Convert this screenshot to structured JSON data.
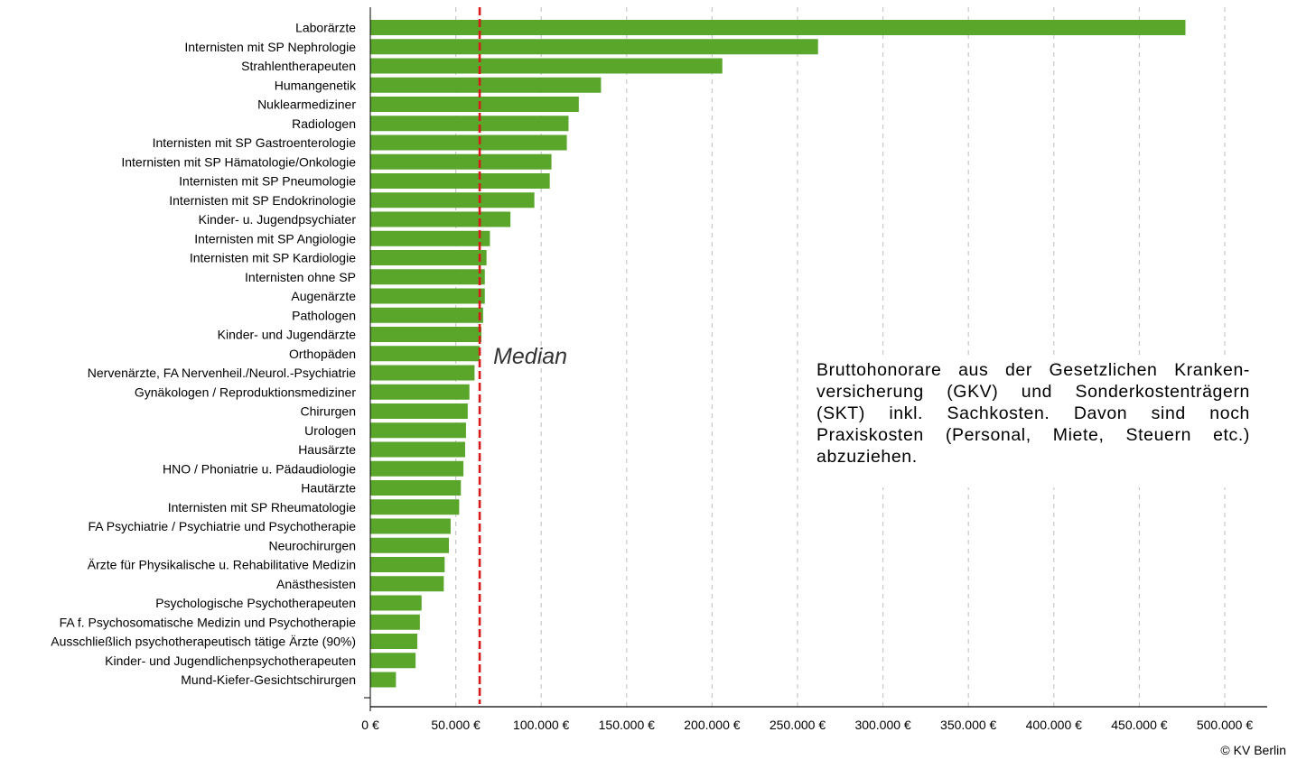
{
  "chart_data": {
    "type": "bar",
    "orientation": "horizontal",
    "categories": [
      "Laborärzte",
      "Internisten mit SP Nephrologie",
      "Strahlentherapeuten",
      "Humangenetik",
      "Nuklearmediziner",
      "Radiologen",
      "Internisten mit SP Gastroenterologie",
      "Internisten mit SP Hämatologie/Onkologie",
      "Internisten mit SP Pneumologie",
      "Internisten mit SP Endokrinologie",
      "Kinder- u. Jugendpsychiater",
      "Internisten mit SP Angiologie",
      "Internisten mit SP Kardiologie",
      "Internisten ohne SP",
      "Augenärzte",
      "Pathologen",
      "Kinder- und Jugendärzte",
      "Orthopäden",
      "Nervenärzte, FA Nervenheil./Neurol.-Psychiatrie",
      "Gynäkologen / Reproduktionsmediziner",
      "Chirurgen",
      "Urologen",
      "Hausärzte",
      "HNO / Phoniatrie u. Pädaudiologie",
      "Hautärzte",
      "Internisten mit SP Rheumatologie",
      "FA Psychiatrie / Psychiatrie und Psychotherapie",
      "Neurochirurgen",
      "Ärzte für Physikalische u. Rehabilitative Medizin",
      "Anästhesisten",
      "Psychologische Psychotherapeuten",
      "FA f. Psychosomatische Medizin und Psychotherapie",
      "Ausschließlich psychotherapeutisch tätige Ärzte (90%)",
      "Kinder- und Jugendlichenpsychotherapeuten",
      "Mund-Kiefer-Gesichtschirurgen"
    ],
    "values": [
      477000,
      262000,
      206000,
      135000,
      122000,
      116000,
      115000,
      106000,
      105000,
      96000,
      82000,
      70000,
      68000,
      67000,
      67000,
      66000,
      65000,
      64000,
      61000,
      58000,
      57000,
      56000,
      55500,
      54500,
      53000,
      52000,
      47000,
      46000,
      43500,
      43000,
      30000,
      29000,
      27500,
      26500,
      15000
    ],
    "xlim": [
      0,
      525000
    ],
    "xticks": [
      "0 €",
      "50.000 €",
      "100.000 €",
      "150.000 €",
      "200.000 €",
      "250.000 €",
      "300.000 €",
      "350.000 €",
      "400.000 €",
      "450.000 €",
      "500.000 €"
    ],
    "xtick_values": [
      0,
      50000,
      100000,
      150000,
      200000,
      250000,
      300000,
      350000,
      400000,
      450000,
      500000
    ],
    "median_value": 64000,
    "median_label": "Median",
    "grid": "vertical dashed",
    "bar_color": "#5aa62b",
    "median_color": "#d7191c",
    "annotation": "Bruttohonorare aus der Gesetzlichen Kranken-versicherung (GKV) und Sonderkostenträgern (SKT) inkl. Sachkosten. Davon sind noch Praxiskosten (Personal, Miete, Steuern etc.) abzuziehen.",
    "title": ""
  },
  "copyright": "© KV Berlin"
}
